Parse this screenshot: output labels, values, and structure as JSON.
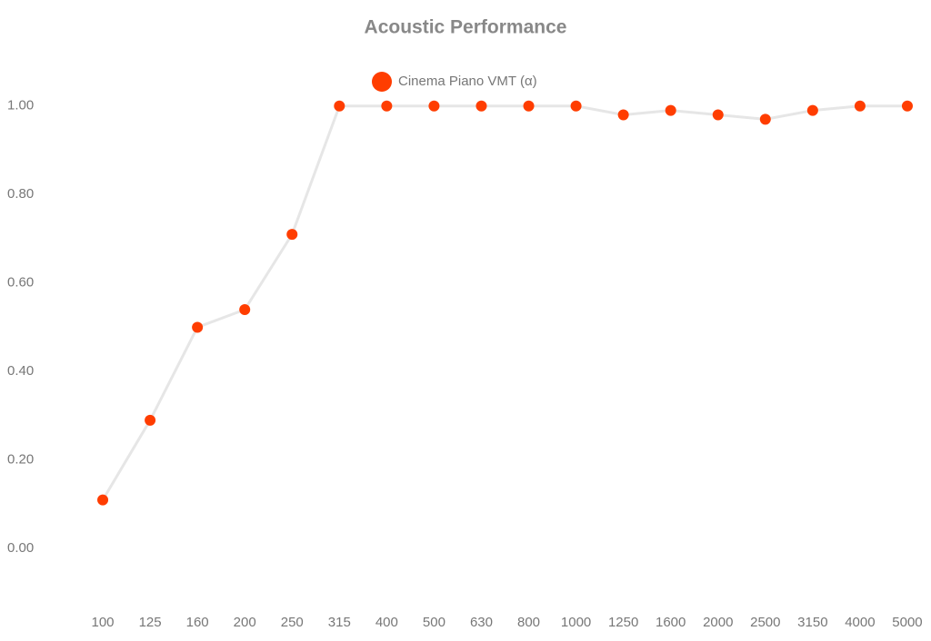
{
  "chart_data": {
    "type": "line",
    "title": "Acoustic Performance",
    "categories": [
      "100",
      "125",
      "160",
      "200",
      "250",
      "315",
      "400",
      "500",
      "630",
      "800",
      "1000",
      "1250",
      "1600",
      "2000",
      "2500",
      "3150",
      "4000",
      "5000"
    ],
    "series": [
      {
        "name": "Cinema Piano VMT (α)",
        "color": "#ff3d00",
        "line_color": "#e6e6e6",
        "values": [
          0.11,
          0.29,
          0.5,
          0.54,
          0.71,
          1.0,
          1.0,
          1.0,
          1.0,
          1.0,
          1.0,
          0.98,
          0.99,
          0.98,
          0.97,
          0.99,
          1.0,
          1.0
        ]
      }
    ],
    "ylim": [
      -0.1,
      1.1
    ],
    "yticks": [
      {
        "value": 0,
        "label": "0.00"
      },
      {
        "value": 0.2,
        "label": "0.20"
      },
      {
        "value": 0.4,
        "label": "0.40"
      },
      {
        "value": 0.6,
        "label": "0.60"
      },
      {
        "value": 0.8,
        "label": "0.80"
      },
      {
        "value": 1,
        "label": "1.00"
      }
    ],
    "grid": false,
    "legend": "top"
  }
}
